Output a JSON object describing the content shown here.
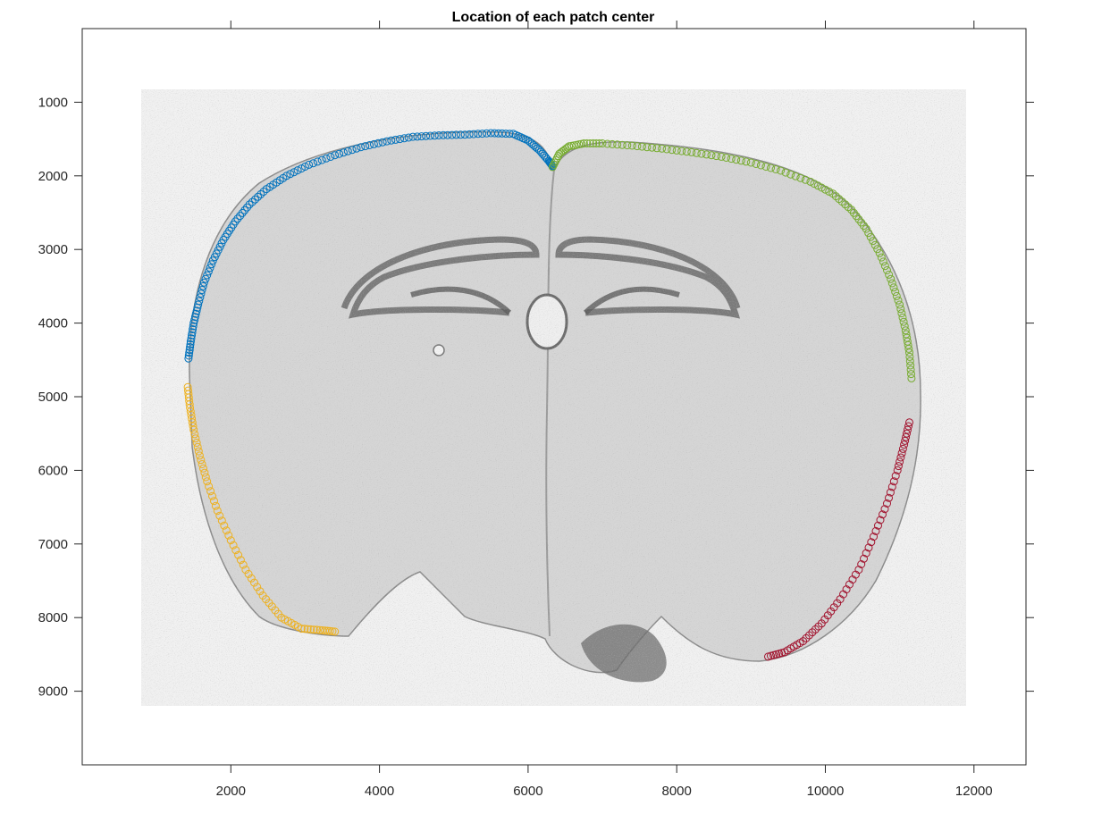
{
  "figure": {
    "title": "Location of each patch center"
  },
  "chart_data": {
    "type": "scatter",
    "title": "Location of each patch center",
    "xlabel": "",
    "ylabel": "",
    "xlim": [
      0,
      12700
    ],
    "ylim": [
      10000,
      0
    ],
    "y_reversed": true,
    "grid": false,
    "background_image": "grayscale coronal brain tissue section",
    "image_extent": {
      "x": [
        800,
        11900
      ],
      "y": [
        830,
        9120
      ]
    },
    "x_ticks": [
      2000,
      4000,
      6000,
      8000,
      10000,
      12000
    ],
    "x_tick_labels": [
      "2000",
      "4000",
      "6000",
      "8000",
      "10000",
      "12000"
    ],
    "y_ticks": [
      1000,
      2000,
      3000,
      4000,
      5000,
      6000,
      7000,
      8000,
      9000
    ],
    "y_tick_labels": [
      "1000",
      "2000",
      "3000",
      "4000",
      "5000",
      "6000",
      "7000",
      "8000",
      "9000"
    ],
    "marker": "open-circle",
    "series": [
      {
        "color": "#0072BD",
        "points": [
          [
            1430,
            4480
          ],
          [
            1460,
            4250
          ],
          [
            1500,
            4000
          ],
          [
            1560,
            3750
          ],
          [
            1640,
            3450
          ],
          [
            1760,
            3150
          ],
          [
            1900,
            2870
          ],
          [
            2060,
            2620
          ],
          [
            2250,
            2390
          ],
          [
            2480,
            2180
          ],
          [
            2750,
            2000
          ],
          [
            3050,
            1850
          ],
          [
            3400,
            1720
          ],
          [
            3750,
            1610
          ],
          [
            4100,
            1530
          ],
          [
            4450,
            1470
          ],
          [
            4800,
            1450
          ],
          [
            5150,
            1440
          ],
          [
            5500,
            1420
          ],
          [
            5800,
            1430
          ],
          [
            6000,
            1520
          ],
          [
            6150,
            1650
          ],
          [
            6280,
            1800
          ],
          [
            6330,
            1870
          ]
        ]
      },
      {
        "color": "#77AC30",
        "points": [
          [
            6330,
            1880
          ],
          [
            6420,
            1700
          ],
          [
            6550,
            1600
          ],
          [
            6750,
            1560
          ],
          [
            7000,
            1560
          ],
          [
            7400,
            1590
          ],
          [
            7800,
            1630
          ],
          [
            8200,
            1680
          ],
          [
            8600,
            1740
          ],
          [
            9000,
            1820
          ],
          [
            9400,
            1930
          ],
          [
            9800,
            2080
          ],
          [
            10100,
            2240
          ],
          [
            10350,
            2460
          ],
          [
            10550,
            2720
          ],
          [
            10730,
            3050
          ],
          [
            10880,
            3400
          ],
          [
            11000,
            3750
          ],
          [
            11080,
            4100
          ],
          [
            11130,
            4400
          ],
          [
            11160,
            4750
          ]
        ]
      },
      {
        "color": "#EDB120",
        "points": [
          [
            1420,
            4870
          ],
          [
            1450,
            5150
          ],
          [
            1500,
            5450
          ],
          [
            1580,
            5800
          ],
          [
            1680,
            6150
          ],
          [
            1820,
            6550
          ],
          [
            2000,
            6950
          ],
          [
            2200,
            7350
          ],
          [
            2430,
            7700
          ],
          [
            2680,
            8000
          ],
          [
            2950,
            8150
          ],
          [
            3200,
            8170
          ],
          [
            3400,
            8190
          ]
        ]
      },
      {
        "color": "#A2142F",
        "points": [
          [
            9230,
            8530
          ],
          [
            9450,
            8470
          ],
          [
            9700,
            8320
          ],
          [
            9950,
            8080
          ],
          [
            10200,
            7750
          ],
          [
            10450,
            7350
          ],
          [
            10650,
            6900
          ],
          [
            10830,
            6450
          ],
          [
            10970,
            6000
          ],
          [
            11060,
            5650
          ],
          [
            11130,
            5350
          ]
        ]
      }
    ]
  }
}
